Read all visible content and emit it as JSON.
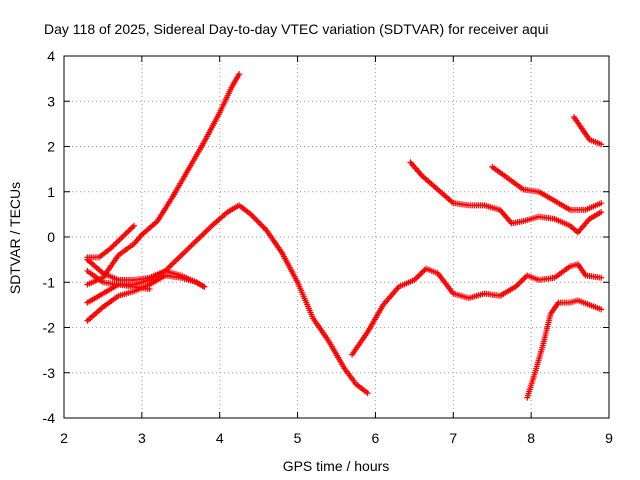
{
  "chart_data": {
    "type": "scatter",
    "title": "Day 118 of 2025, Sidereal Day-to-day VTEC variation (SDTVAR) for receiver aqui",
    "xlabel": "GPS time / hours",
    "ylabel": "SDTVAR / TECUs",
    "xlim": [
      2,
      9
    ],
    "ylim": [
      -4,
      4
    ],
    "x_ticks": [
      "2",
      "3",
      "4",
      "5",
      "6",
      "7",
      "8",
      "9"
    ],
    "y_ticks": [
      "-4",
      "-3",
      "-2",
      "-1",
      "0",
      "1",
      "2",
      "3",
      "4"
    ],
    "grid": true,
    "marker": "+",
    "color": "#ff0000",
    "series": [
      {
        "x": [
          2.3,
          2.5,
          2.7,
          2.9,
          3.0,
          3.2,
          3.4,
          3.6,
          3.8,
          4.0,
          4.15,
          4.25
        ],
        "y": [
          -1.05,
          -0.9,
          -0.4,
          -0.15,
          0.05,
          0.35,
          0.9,
          1.5,
          2.1,
          2.75,
          3.3,
          3.6
        ]
      },
      {
        "x": [
          2.3,
          2.5,
          2.7,
          2.9,
          3.1,
          3.3,
          3.6,
          3.9,
          4.1,
          4.25,
          4.4,
          4.6,
          4.8,
          5.0,
          5.2,
          5.4,
          5.6,
          5.75,
          5.9
        ],
        "y": [
          -1.45,
          -1.25,
          -1.05,
          -1.05,
          -0.95,
          -0.75,
          -0.25,
          0.25,
          0.55,
          0.7,
          0.5,
          0.15,
          -0.35,
          -1.0,
          -1.8,
          -2.3,
          -2.9,
          -3.25,
          -3.45
        ]
      },
      {
        "x": [
          2.3,
          2.5,
          2.7,
          2.9,
          3.1,
          3.3,
          3.5,
          3.7,
          3.8
        ],
        "y": [
          -1.85,
          -1.55,
          -1.3,
          -1.2,
          -1.05,
          -0.85,
          -0.9,
          -1.0,
          -1.1
        ]
      },
      {
        "x": [
          2.3,
          2.5,
          2.7,
          2.9,
          3.1,
          3.3,
          3.5,
          3.7,
          3.8
        ],
        "y": [
          -0.5,
          -0.8,
          -0.95,
          -0.95,
          -0.9,
          -0.75,
          -0.85,
          -1.0,
          -1.1
        ]
      },
      {
        "x": [
          2.3,
          2.5,
          2.7,
          2.9,
          3.1
        ],
        "y": [
          -0.75,
          -1.0,
          -1.05,
          -1.1,
          -1.15
        ]
      },
      {
        "x": [
          2.3,
          2.45,
          2.6,
          2.75,
          2.9
        ],
        "y": [
          -0.45,
          -0.45,
          -0.25,
          0.0,
          0.25
        ]
      },
      {
        "x": [
          5.7,
          5.9,
          6.1,
          6.3,
          6.5,
          6.65,
          6.8,
          7.0,
          7.2,
          7.4,
          7.6,
          7.8,
          7.95,
          8.1,
          8.3,
          8.5,
          8.6,
          8.7,
          8.9
        ],
        "y": [
          -2.6,
          -2.1,
          -1.5,
          -1.1,
          -0.95,
          -0.7,
          -0.8,
          -1.25,
          -1.35,
          -1.25,
          -1.3,
          -1.1,
          -0.85,
          -0.95,
          -0.9,
          -0.65,
          -0.6,
          -0.85,
          -0.9
        ]
      },
      {
        "x": [
          6.45,
          6.6,
          6.8,
          7.0,
          7.2,
          7.4,
          7.6,
          7.75,
          7.9,
          8.1,
          8.3,
          8.5,
          8.6,
          8.75,
          8.9
        ],
        "y": [
          1.65,
          1.35,
          1.05,
          0.75,
          0.7,
          0.7,
          0.6,
          0.3,
          0.35,
          0.45,
          0.4,
          0.25,
          0.1,
          0.4,
          0.55
        ]
      },
      {
        "x": [
          7.5,
          7.7,
          7.9,
          8.1,
          8.3,
          8.5,
          8.7,
          8.9
        ],
        "y": [
          1.55,
          1.3,
          1.05,
          1.0,
          0.8,
          0.6,
          0.6,
          0.75
        ]
      },
      {
        "x": [
          8.55,
          8.65,
          8.75,
          8.9
        ],
        "y": [
          2.65,
          2.4,
          2.15,
          2.05
        ]
      },
      {
        "x": [
          7.95,
          8.05,
          8.15,
          8.25,
          8.35,
          8.5,
          8.6,
          8.75,
          8.9
        ],
        "y": [
          -3.55,
          -3.0,
          -2.4,
          -1.7,
          -1.45,
          -1.45,
          -1.4,
          -1.5,
          -1.6
        ]
      }
    ]
  }
}
